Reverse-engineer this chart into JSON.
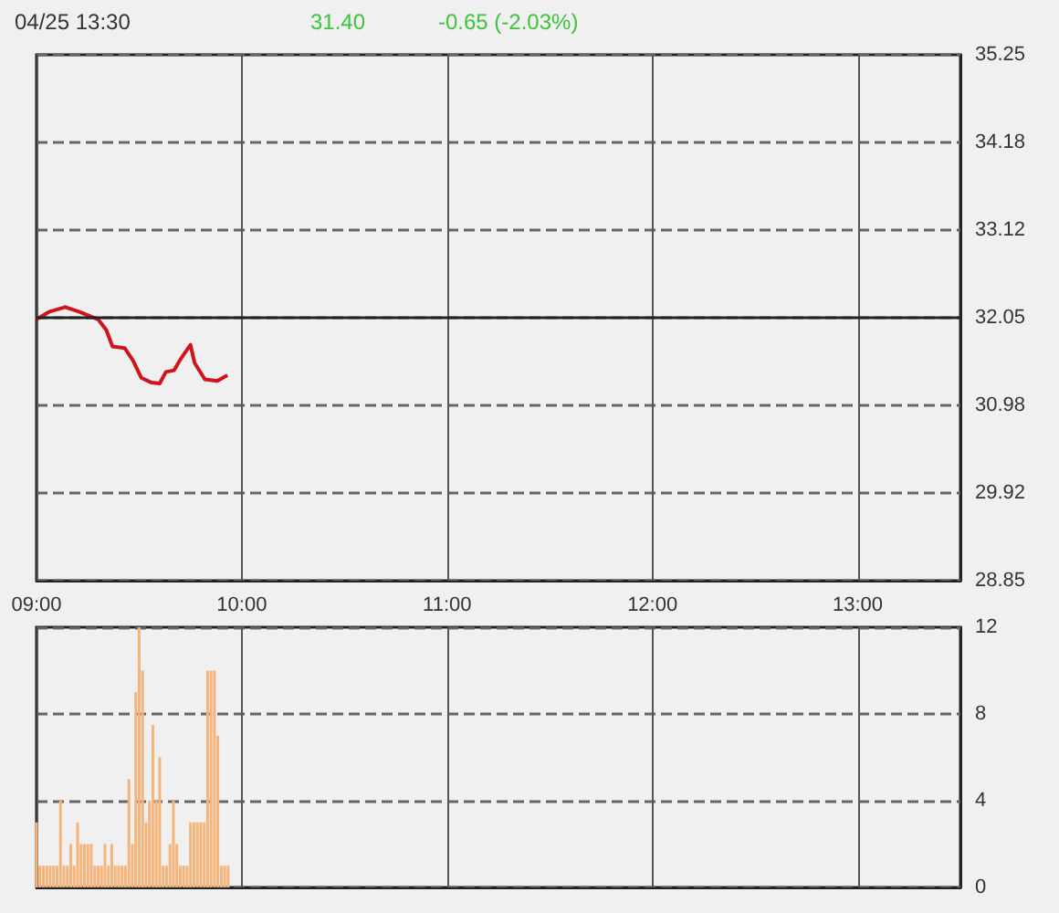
{
  "chart_data": [
    {
      "type": "line",
      "title": "04/25 13:30",
      "annotations": [
        "31.40",
        "-0.65 (-2.03%)"
      ],
      "xlim": [
        9,
        13.5
      ],
      "xticks": [
        {
          "value": 9,
          "label": "09:00"
        },
        {
          "value": 10,
          "label": "10:00"
        },
        {
          "value": 11,
          "label": "11:00"
        },
        {
          "value": 12,
          "label": "12:00"
        },
        {
          "value": 13,
          "label": "13:00"
        }
      ],
      "ylim": [
        28.85,
        35.25
      ],
      "yticks": [
        28.85,
        29.92,
        30.98,
        32.05,
        33.12,
        34.18,
        35.25
      ],
      "grid": true,
      "marker": "none",
      "line_style": "solid",
      "ref_lines": [
        {
          "axis": "y",
          "value": 32.05,
          "color": "#222222",
          "line_style": "solid"
        }
      ],
      "series": [
        {
          "color": "#d0141c",
          "x": [
            9.0,
            9.06,
            9.14,
            9.21,
            9.3,
            9.34,
            9.37,
            9.43,
            9.47,
            9.51,
            9.56,
            9.6,
            9.63,
            9.67,
            9.7,
            9.75,
            9.77,
            9.82,
            9.88,
            9.93
          ],
          "values": [
            32.03,
            32.12,
            32.18,
            32.12,
            32.03,
            31.9,
            31.7,
            31.68,
            31.53,
            31.32,
            31.26,
            31.25,
            31.39,
            31.41,
            31.54,
            31.72,
            31.5,
            31.3,
            31.28,
            31.35
          ]
        }
      ]
    },
    {
      "type": "bar",
      "xlim": [
        9,
        13.5
      ],
      "ylim": [
        0,
        12
      ],
      "yticks": [
        0,
        4,
        8,
        12
      ],
      "grid": true,
      "tick_labels": "y",
      "color": "#f5b47a",
      "x": [
        9.0,
        9.0167,
        9.0333,
        9.05,
        9.0667,
        9.0833,
        9.1,
        9.1167,
        9.1333,
        9.15,
        9.1667,
        9.1833,
        9.2,
        9.2167,
        9.2333,
        9.25,
        9.2667,
        9.2833,
        9.3,
        9.3167,
        9.3333,
        9.35,
        9.3667,
        9.3833,
        9.4,
        9.4167,
        9.4333,
        9.45,
        9.4667,
        9.4833,
        9.5,
        9.5167,
        9.5333,
        9.55,
        9.5667,
        9.5833,
        9.6,
        9.6167,
        9.6333,
        9.65,
        9.6667,
        9.6833,
        9.7,
        9.7167,
        9.7333,
        9.75,
        9.7667,
        9.7833,
        9.8,
        9.8167,
        9.8333,
        9.85,
        9.8667,
        9.8833,
        9.9,
        9.9167,
        9.9333
      ],
      "values": [
        3,
        1,
        1,
        1,
        1,
        1,
        1,
        4,
        1,
        1,
        2,
        1,
        3,
        2,
        2,
        2,
        2,
        1,
        1,
        1,
        2,
        1,
        2,
        1,
        1,
        1,
        1,
        5,
        2,
        9,
        12,
        10,
        3,
        4,
        7.5,
        4,
        6,
        1,
        1,
        2,
        4,
        2,
        1,
        1,
        1,
        3,
        3,
        3,
        3,
        3,
        10,
        10,
        10,
        7,
        1,
        1,
        1
      ]
    }
  ]
}
